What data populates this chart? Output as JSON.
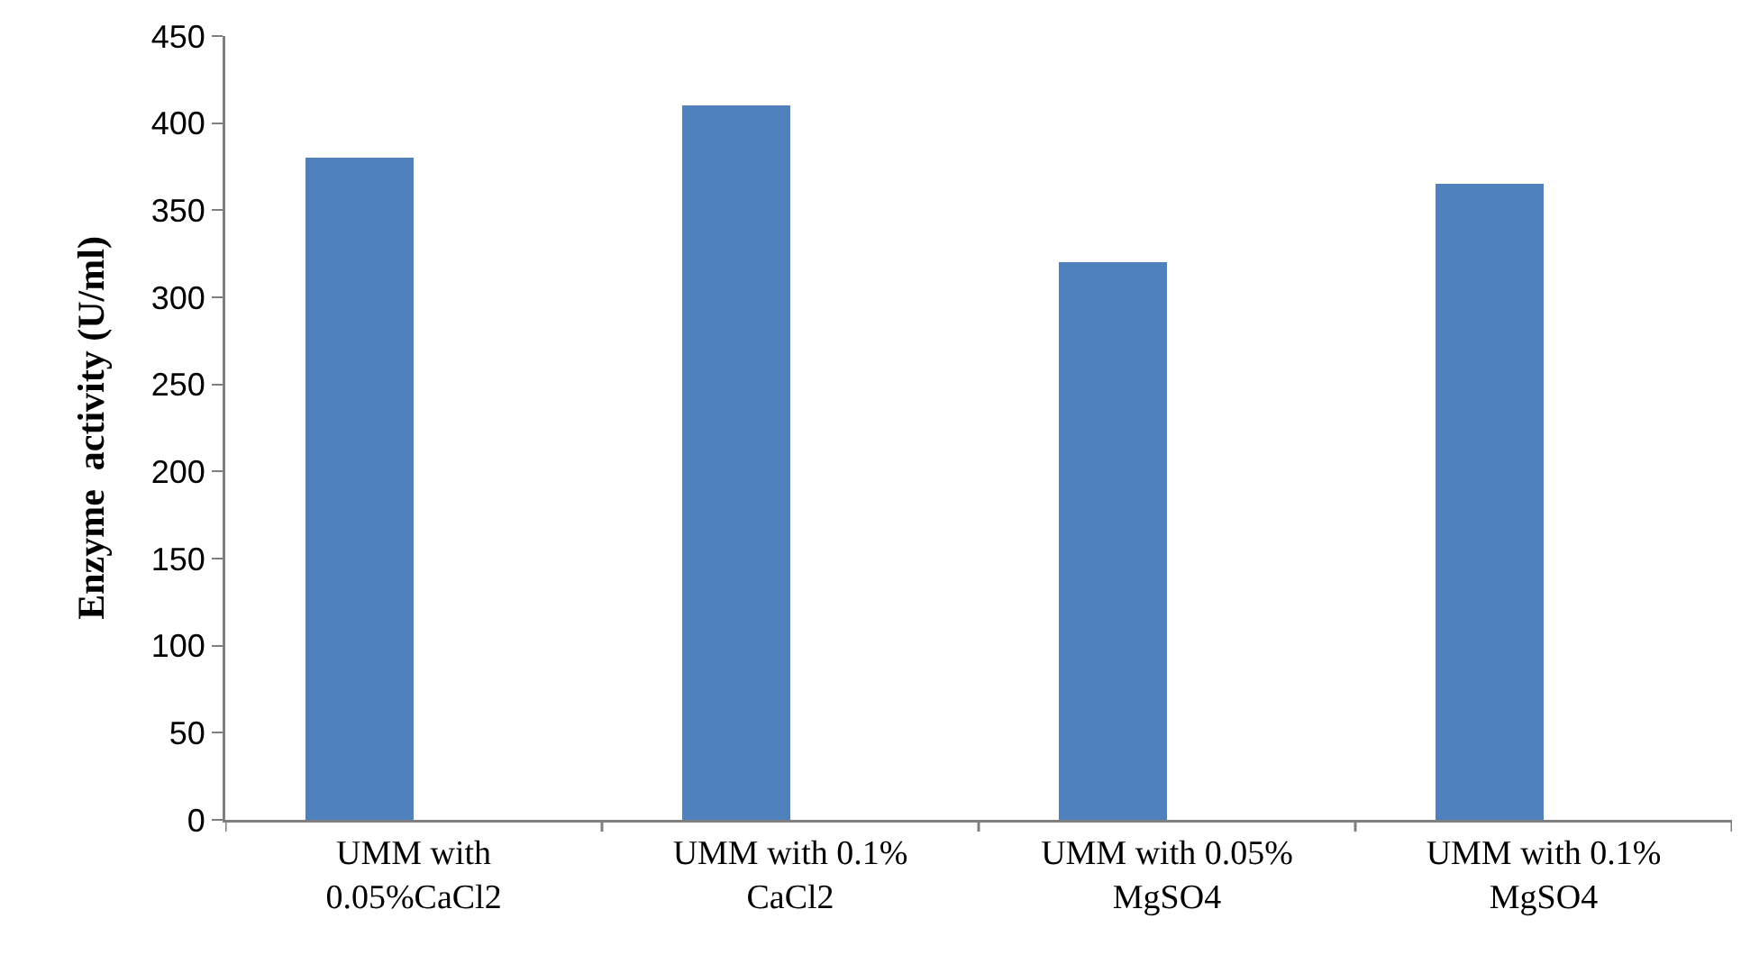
{
  "chart_data": {
    "type": "bar",
    "ylabel": "Enzyme  activity (U/ml)",
    "categories": [
      "UMM with 0.05%CaCl2",
      "UMM with 0.1% CaCl2",
      "UMM with 0.05% MgSO4",
      "UMM with 0.1% MgSO4"
    ],
    "values": [
      380,
      410,
      320,
      365
    ],
    "color": "#4f81bd",
    "ylim": [
      0,
      450
    ],
    "yticks": [
      0,
      50,
      100,
      150,
      200,
      250,
      300,
      350,
      400,
      450
    ],
    "grid": false
  }
}
